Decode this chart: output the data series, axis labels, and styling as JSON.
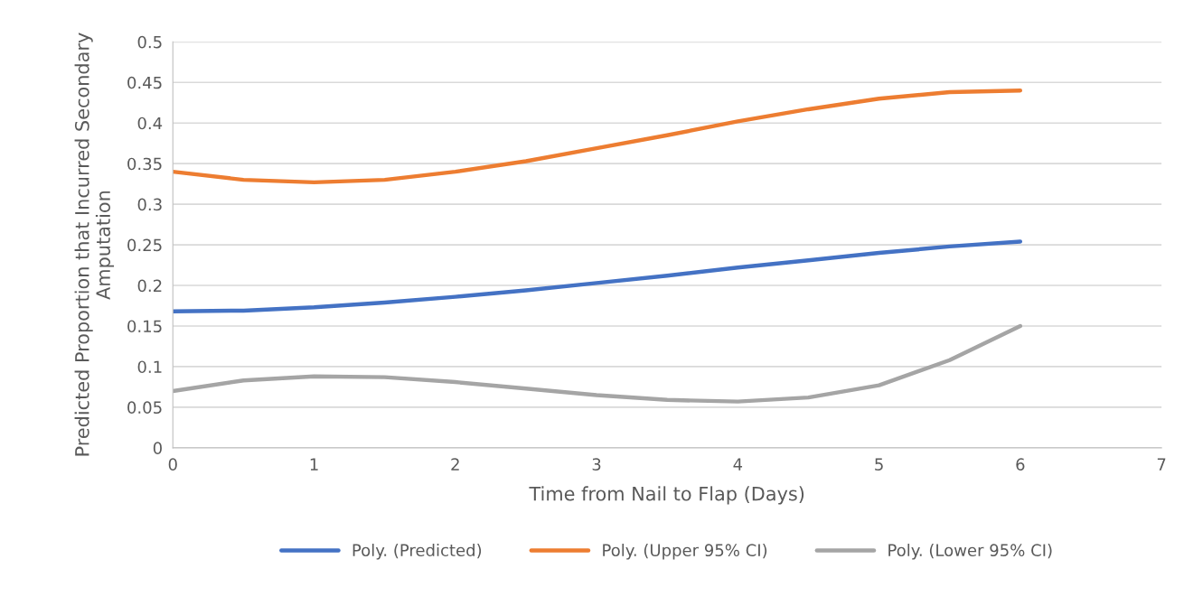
{
  "chart_data": {
    "type": "line",
    "xlabel": "Time from Nail to Flap (Days)",
    "ylabel": "Predicted Proportion that Incurred Secondary Amputation",
    "xlim": [
      0,
      7
    ],
    "xticks": [
      0,
      1,
      2,
      3,
      4,
      5,
      6,
      7
    ],
    "ylim": [
      0,
      0.5
    ],
    "yticks": [
      0,
      0.05,
      0.1,
      0.15,
      0.2,
      0.25,
      0.3,
      0.35,
      0.4,
      0.45,
      0.5
    ],
    "grid": "y",
    "legend": "bottom",
    "marker": "none",
    "line_style": "solid",
    "x": [
      0,
      0.5,
      1,
      1.5,
      2,
      2.5,
      3,
      3.5,
      4,
      4.5,
      5,
      5.5,
      6
    ],
    "series": [
      {
        "name": "Poly. (Predicted)",
        "color": "#4472c4",
        "values": [
          0.168,
          0.169,
          0.173,
          0.179,
          0.186,
          0.194,
          0.203,
          0.212,
          0.222,
          0.231,
          0.24,
          0.248,
          0.254
        ]
      },
      {
        "name": "Poly. (Upper 95% CI)",
        "color": "#ed7d31",
        "values": [
          0.34,
          0.33,
          0.327,
          0.33,
          0.34,
          0.353,
          0.369,
          0.385,
          0.402,
          0.417,
          0.43,
          0.438,
          0.44
        ]
      },
      {
        "name": "Poly. (Lower 95% CI)",
        "color": "#a5a5a5",
        "values": [
          0.07,
          0.083,
          0.088,
          0.087,
          0.081,
          0.073,
          0.065,
          0.059,
          0.057,
          0.062,
          0.077,
          0.108,
          0.15
        ]
      }
    ]
  }
}
